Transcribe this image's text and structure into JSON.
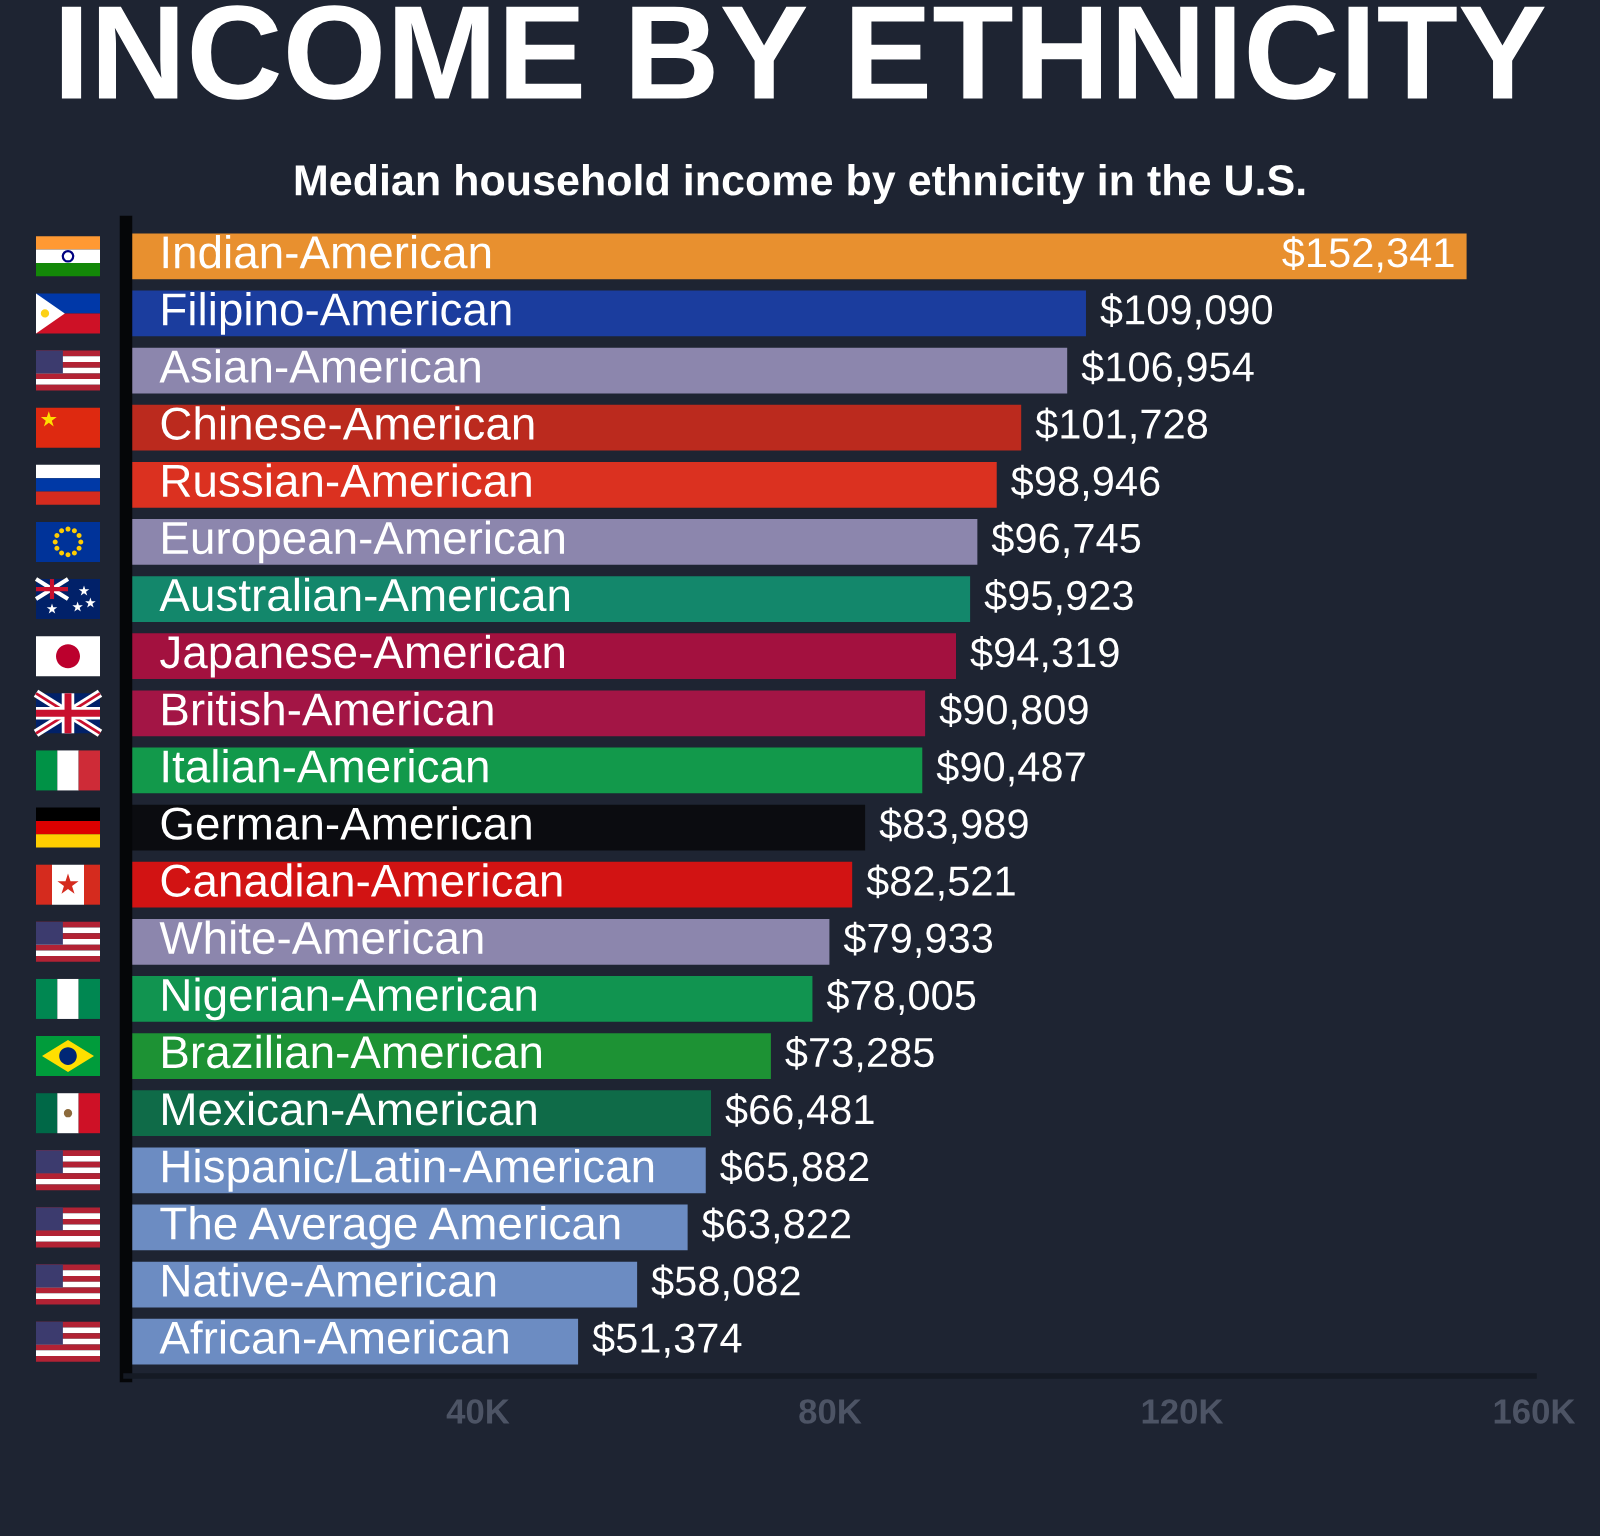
{
  "chart_data": {
    "type": "bar",
    "orientation": "horizontal",
    "title": "INCOME BY ETHNICITY",
    "subtitle": "Median household income by ethnicity in the U.S.",
    "categories": [
      "Indian-American",
      "Filipino-American",
      "Asian-American",
      "Chinese-American",
      "Russian-American",
      "European-American",
      "Australian-American",
      "Japanese-American",
      "British-American",
      "Italian-American",
      "German-American",
      "Canadian-American",
      "White-American",
      "Nigerian-American",
      "Brazilian-American",
      "Mexican-American",
      "Hispanic/Latin-American",
      "The Average American",
      "Native-American",
      "African-American"
    ],
    "values": [
      152341,
      109090,
      106954,
      101728,
      98946,
      96745,
      95923,
      94319,
      90809,
      90487,
      83989,
      82521,
      79933,
      78005,
      73285,
      66481,
      65882,
      63822,
      58082,
      51374
    ],
    "colors": [
      "#e8902f",
      "#1b3d9e",
      "#8c86ad",
      "#bb2a1e",
      "#db3120",
      "#8c86ad",
      "#13876b",
      "#a3113f",
      "#a31545",
      "#12994b",
      "#0b0c10",
      "#d21313",
      "#8c86ad",
      "#119450",
      "#1d9234",
      "#0f6b48",
      "#6c8cc2",
      "#6c8cc2",
      "#6c8cc2",
      "#6c8cc2"
    ],
    "value_labels": [
      "$152,341",
      "$109,090",
      "$106,954",
      "$101,728",
      "$98,946",
      "$96,745",
      "$95,923",
      "$94,319",
      "$90,809",
      "$90,487",
      "$83,989",
      "$82,521",
      "$79,933",
      "$78,005",
      "$73,285",
      "$66,481",
      "$65,882",
      "$63,822",
      "$58,082",
      "$51,374"
    ],
    "xlim": [
      0,
      160000
    ],
    "xticks": [
      {
        "value": 40000,
        "label": "40K"
      },
      {
        "value": 80000,
        "label": "80K"
      },
      {
        "value": 120000,
        "label": "120K"
      },
      {
        "value": 160000,
        "label": "160K"
      }
    ]
  }
}
